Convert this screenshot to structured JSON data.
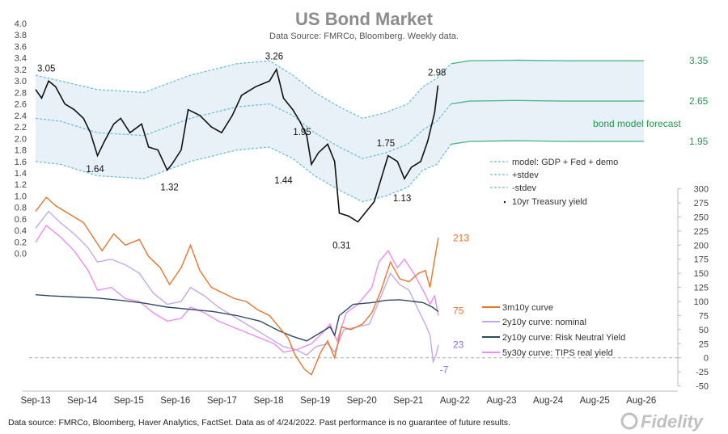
{
  "chart_data": {
    "type": "line",
    "title": "US Bond Market",
    "subtitle": "Data Source: FMRCo, Bloomberg.  Weekly data.",
    "footer": "Data source: FMRCo, Bloomberg, Haver Analytics, FactSet. Data as of 4/24/2022. Past performance is no guarantee of future results.",
    "brand": "Fidelity",
    "x_ticks": [
      "Sep-13",
      "Sep-14",
      "Sep-15",
      "Sep-16",
      "Sep-17",
      "Sep-18",
      "Sep-19",
      "Sep-20",
      "Sep-21",
      "Aug-22",
      "Aug-23",
      "Aug-24",
      "Aug-25",
      "Aug-26"
    ],
    "y_left": {
      "ylim": [
        0.0,
        4.0
      ],
      "ticks": [
        "4.0",
        "3.8",
        "3.6",
        "3.4",
        "3.2",
        "3.0",
        "2.8",
        "2.6",
        "2.4",
        "2.2",
        "2.0",
        "1.8",
        "1.6",
        "1.4",
        "1.2",
        "1.0",
        "0.8",
        "0.6",
        "0.4",
        "0.2",
        "0.0"
      ]
    },
    "y_right": {
      "ylim": [
        -50,
        300
      ],
      "ticks": [
        "300",
        "275",
        "250",
        "225",
        "200",
        "175",
        "150",
        "125",
        "100",
        "75",
        "50",
        "25",
        "0",
        "-25",
        "-50"
      ]
    },
    "colors": {
      "treasury": "#111111",
      "model": "#6ec1d6",
      "band_fill": "#e9f1f8",
      "forecast": "#52b788",
      "forecast_text": "#1f9a4e",
      "c3m10y": "#e8762b",
      "c2y10y_nominal": "#c5a9e6",
      "c2y10y_rny": "#2e4a62",
      "c5y30y_tips": "#f08cf0",
      "zero_line": "#aaaaaa",
      "value_23": "#8a6fd1",
      "value_m7": "#8a6fd1"
    },
    "legend_top": [
      {
        "key": "model",
        "label": "model: GDP + Fed + demo"
      },
      {
        "key": "plus",
        "label": "+stdev"
      },
      {
        "key": "minus",
        "label": "-stdev"
      },
      {
        "key": "treasury",
        "label": "10yr Treasury yield"
      }
    ],
    "legend_bottom": [
      {
        "key": "c3m10y",
        "label": "3m10y curve"
      },
      {
        "key": "c2y10y_nominal",
        "label": "2y10y curve: nominal"
      },
      {
        "key": "c2y10y_rny",
        "label": "2y10y curve: Risk Neutral Yield"
      },
      {
        "key": "c5y30y_tips",
        "label": "5y30y curve: TIPS real yield"
      }
    ],
    "forecast_label": "bond model forecast",
    "forecast_end": {
      "upper": "3.35",
      "mid": "2.65",
      "lower": "1.95"
    },
    "treasury_annotations": [
      {
        "label": "3.05",
        "x": 2013.9,
        "y": 3.05
      },
      {
        "label": "1.64",
        "x": 2014.95,
        "y": 1.64
      },
      {
        "label": "1.32",
        "x": 2016.55,
        "y": 1.32
      },
      {
        "label": "3.26",
        "x": 2018.8,
        "y": 3.26
      },
      {
        "label": "1.95",
        "x": 2019.4,
        "y": 1.95
      },
      {
        "label": "1.44",
        "x": 2019.0,
        "y": 1.44
      },
      {
        "label": "0.31",
        "x": 2020.25,
        "y": 0.31
      },
      {
        "label": "1.75",
        "x": 2021.2,
        "y": 1.75
      },
      {
        "label": "1.13",
        "x": 2021.55,
        "y": 1.13
      },
      {
        "label": "2.98",
        "x": 2022.3,
        "y": 2.98
      }
    ],
    "curve_end_labels": {
      "c3m10y": "213",
      "c2y10y_nominal": "23",
      "c2y10y_min": "-7",
      "c5y30y_tips": "75"
    },
    "series": {
      "treasury": [
        [
          2013.67,
          2.85
        ],
        [
          2013.8,
          2.7
        ],
        [
          2013.95,
          3.0
        ],
        [
          2014.1,
          2.9
        ],
        [
          2014.3,
          2.6
        ],
        [
          2014.5,
          2.5
        ],
        [
          2014.7,
          2.35
        ],
        [
          2014.85,
          2.1
        ],
        [
          2015.0,
          1.7
        ],
        [
          2015.15,
          1.95
        ],
        [
          2015.35,
          2.25
        ],
        [
          2015.5,
          2.35
        ],
        [
          2015.7,
          2.1
        ],
        [
          2015.95,
          2.25
        ],
        [
          2016.1,
          1.85
        ],
        [
          2016.3,
          1.8
        ],
        [
          2016.5,
          1.45
        ],
        [
          2016.6,
          1.55
        ],
        [
          2016.8,
          1.8
        ],
        [
          2016.95,
          2.5
        ],
        [
          2017.2,
          2.4
        ],
        [
          2017.45,
          2.2
        ],
        [
          2017.67,
          2.1
        ],
        [
          2017.9,
          2.4
        ],
        [
          2018.1,
          2.75
        ],
        [
          2018.4,
          2.9
        ],
        [
          2018.7,
          3.0
        ],
        [
          2018.85,
          3.2
        ],
        [
          2019.0,
          2.7
        ],
        [
          2019.2,
          2.5
        ],
        [
          2019.35,
          2.3
        ],
        [
          2019.5,
          2.05
        ],
        [
          2019.6,
          1.55
        ],
        [
          2019.75,
          1.75
        ],
        [
          2019.95,
          1.9
        ],
        [
          2020.1,
          1.6
        ],
        [
          2020.2,
          0.7
        ],
        [
          2020.4,
          0.65
        ],
        [
          2020.6,
          0.55
        ],
        [
          2020.75,
          0.7
        ],
        [
          2020.95,
          0.9
        ],
        [
          2021.1,
          1.3
        ],
        [
          2021.25,
          1.7
        ],
        [
          2021.45,
          1.6
        ],
        [
          2021.6,
          1.3
        ],
        [
          2021.75,
          1.5
        ],
        [
          2021.95,
          1.6
        ],
        [
          2022.1,
          1.95
        ],
        [
          2022.25,
          2.45
        ],
        [
          2022.32,
          2.92
        ]
      ],
      "model_mid": [
        [
          2013.67,
          2.35
        ],
        [
          2014.2,
          2.3
        ],
        [
          2015.0,
          2.1
        ],
        [
          2016.0,
          2.05
        ],
        [
          2017.0,
          2.35
        ],
        [
          2018.0,
          2.55
        ],
        [
          2018.7,
          2.6
        ],
        [
          2019.2,
          2.4
        ],
        [
          2019.67,
          2.1
        ],
        [
          2020.2,
          1.85
        ],
        [
          2020.7,
          1.65
        ],
        [
          2021.2,
          1.75
        ],
        [
          2021.67,
          1.9
        ],
        [
          2022.0,
          2.15
        ],
        [
          2022.3,
          2.3
        ],
        [
          2022.6,
          2.6
        ],
        [
          2023.0,
          2.65
        ],
        [
          2024.0,
          2.66
        ],
        [
          2025.0,
          2.65
        ],
        [
          2026.0,
          2.65
        ],
        [
          2026.75,
          2.65
        ]
      ],
      "model_upper": [
        [
          2013.67,
          3.1
        ],
        [
          2014.2,
          3.0
        ],
        [
          2015.0,
          2.85
        ],
        [
          2016.0,
          2.8
        ],
        [
          2017.0,
          3.1
        ],
        [
          2018.0,
          3.3
        ],
        [
          2018.7,
          3.35
        ],
        [
          2019.2,
          3.1
        ],
        [
          2019.67,
          2.8
        ],
        [
          2020.2,
          2.55
        ],
        [
          2020.7,
          2.35
        ],
        [
          2021.2,
          2.45
        ],
        [
          2021.67,
          2.6
        ],
        [
          2022.0,
          2.9
        ],
        [
          2022.3,
          3.05
        ],
        [
          2022.6,
          3.3
        ],
        [
          2023.0,
          3.35
        ],
        [
          2024.0,
          3.36
        ],
        [
          2025.0,
          3.35
        ],
        [
          2026.0,
          3.35
        ],
        [
          2026.75,
          3.35
        ]
      ],
      "model_lower": [
        [
          2013.67,
          1.6
        ],
        [
          2014.2,
          1.55
        ],
        [
          2015.0,
          1.35
        ],
        [
          2016.0,
          1.3
        ],
        [
          2017.0,
          1.6
        ],
        [
          2018.0,
          1.8
        ],
        [
          2018.7,
          1.85
        ],
        [
          2019.2,
          1.65
        ],
        [
          2019.67,
          1.35
        ],
        [
          2020.2,
          1.1
        ],
        [
          2020.7,
          0.9
        ],
        [
          2021.2,
          1.0
        ],
        [
          2021.67,
          1.15
        ],
        [
          2022.0,
          1.45
        ],
        [
          2022.3,
          1.55
        ],
        [
          2022.6,
          1.9
        ],
        [
          2023.0,
          1.95
        ],
        [
          2024.0,
          1.96
        ],
        [
          2025.0,
          1.95
        ],
        [
          2026.0,
          1.95
        ],
        [
          2026.75,
          1.95
        ]
      ],
      "c3m10y": [
        [
          2013.67,
          260
        ],
        [
          2013.9,
          285
        ],
        [
          2014.1,
          270
        ],
        [
          2014.4,
          255
        ],
        [
          2014.7,
          240
        ],
        [
          2014.9,
          215
        ],
        [
          2015.1,
          190
        ],
        [
          2015.35,
          220
        ],
        [
          2015.6,
          200
        ],
        [
          2015.9,
          210
        ],
        [
          2016.1,
          180
        ],
        [
          2016.35,
          160
        ],
        [
          2016.55,
          130
        ],
        [
          2016.8,
          160
        ],
        [
          2017.0,
          200
        ],
        [
          2017.2,
          155
        ],
        [
          2017.45,
          125
        ],
        [
          2017.7,
          115
        ],
        [
          2017.95,
          105
        ],
        [
          2018.2,
          100
        ],
        [
          2018.45,
          85
        ],
        [
          2018.7,
          75
        ],
        [
          2018.9,
          55
        ],
        [
          2019.1,
          35
        ],
        [
          2019.25,
          5
        ],
        [
          2019.45,
          -20
        ],
        [
          2019.6,
          -30
        ],
        [
          2019.8,
          10
        ],
        [
          2019.95,
          30
        ],
        [
          2020.1,
          0
        ],
        [
          2020.25,
          55
        ],
        [
          2020.45,
          50
        ],
        [
          2020.7,
          60
        ],
        [
          2020.9,
          80
        ],
        [
          2021.1,
          120
        ],
        [
          2021.3,
          170
        ],
        [
          2021.5,
          140
        ],
        [
          2021.7,
          135
        ],
        [
          2021.9,
          150
        ],
        [
          2022.05,
          155
        ],
        [
          2022.15,
          125
        ],
        [
          2022.25,
          175
        ],
        [
          2022.33,
          213
        ]
      ],
      "c2y10y_nominal": [
        [
          2013.67,
          230
        ],
        [
          2013.95,
          260
        ],
        [
          2014.2,
          240
        ],
        [
          2014.5,
          220
        ],
        [
          2014.8,
          195
        ],
        [
          2015.0,
          170
        ],
        [
          2015.3,
          175
        ],
        [
          2015.6,
          165
        ],
        [
          2015.9,
          150
        ],
        [
          2016.2,
          115
        ],
        [
          2016.5,
          95
        ],
        [
          2016.8,
          100
        ],
        [
          2017.0,
          125
        ],
        [
          2017.3,
          110
        ],
        [
          2017.6,
          90
        ],
        [
          2017.9,
          75
        ],
        [
          2018.2,
          60
        ],
        [
          2018.5,
          45
        ],
        [
          2018.8,
          30
        ],
        [
          2019.0,
          20
        ],
        [
          2019.25,
          15
        ],
        [
          2019.5,
          5
        ],
        [
          2019.7,
          20
        ],
        [
          2019.95,
          25
        ],
        [
          2020.1,
          10
        ],
        [
          2020.3,
          50
        ],
        [
          2020.6,
          55
        ],
        [
          2020.85,
          60
        ],
        [
          2021.1,
          110
        ],
        [
          2021.3,
          150
        ],
        [
          2021.5,
          130
        ],
        [
          2021.7,
          120
        ],
        [
          2021.9,
          85
        ],
        [
          2022.05,
          60
        ],
        [
          2022.15,
          40
        ],
        [
          2022.22,
          -7
        ],
        [
          2022.28,
          5
        ],
        [
          2022.33,
          23
        ]
      ],
      "c2y10y_rny": [
        [
          2013.67,
          112
        ],
        [
          2014.0,
          110
        ],
        [
          2014.5,
          108
        ],
        [
          2015.0,
          106
        ],
        [
          2015.5,
          102
        ],
        [
          2016.0,
          97
        ],
        [
          2016.5,
          90
        ],
        [
          2017.0,
          86
        ],
        [
          2017.5,
          82
        ],
        [
          2018.0,
          75
        ],
        [
          2018.5,
          65
        ],
        [
          2018.9,
          48
        ],
        [
          2019.2,
          38
        ],
        [
          2019.5,
          30
        ],
        [
          2019.8,
          45
        ],
        [
          2020.0,
          55
        ],
        [
          2020.1,
          40
        ],
        [
          2020.2,
          75
        ],
        [
          2020.5,
          95
        ],
        [
          2020.9,
          98
        ],
        [
          2021.2,
          102
        ],
        [
          2021.5,
          103
        ],
        [
          2021.8,
          100
        ],
        [
          2022.0,
          98
        ],
        [
          2022.2,
          90
        ],
        [
          2022.33,
          82
        ]
      ],
      "c5y30y_tips": [
        [
          2013.67,
          205
        ],
        [
          2013.9,
          235
        ],
        [
          2014.2,
          215
        ],
        [
          2014.5,
          190
        ],
        [
          2014.8,
          155
        ],
        [
          2015.0,
          120
        ],
        [
          2015.3,
          125
        ],
        [
          2015.6,
          105
        ],
        [
          2015.9,
          100
        ],
        [
          2016.2,
          80
        ],
        [
          2016.5,
          65
        ],
        [
          2016.8,
          70
        ],
        [
          2017.0,
          90
        ],
        [
          2017.3,
          80
        ],
        [
          2017.6,
          65
        ],
        [
          2017.9,
          55
        ],
        [
          2018.2,
          45
        ],
        [
          2018.5,
          35
        ],
        [
          2018.8,
          25
        ],
        [
          2019.0,
          10
        ],
        [
          2019.3,
          15
        ],
        [
          2019.6,
          25
        ],
        [
          2019.85,
          45
        ],
        [
          2020.0,
          60
        ],
        [
          2020.15,
          30
        ],
        [
          2020.35,
          80
        ],
        [
          2020.6,
          95
        ],
        [
          2020.9,
          125
        ],
        [
          2021.05,
          170
        ],
        [
          2021.25,
          190
        ],
        [
          2021.45,
          160
        ],
        [
          2021.6,
          175
        ],
        [
          2021.8,
          150
        ],
        [
          2022.0,
          120
        ],
        [
          2022.15,
          95
        ],
        [
          2022.25,
          110
        ],
        [
          2022.33,
          75
        ]
      ]
    }
  }
}
